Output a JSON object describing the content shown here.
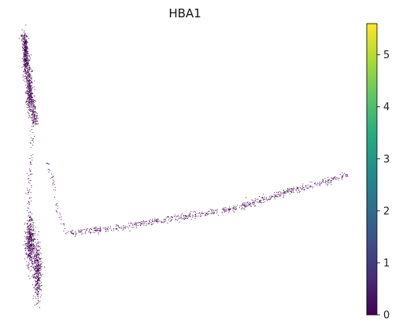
{
  "chart_data": {
    "type": "scatter",
    "title": "HBA1",
    "xlabel": "",
    "ylabel": "",
    "grid": false,
    "axes_visible": false,
    "point_color": "#440154",
    "point_color_value": 0,
    "colorbar": {
      "label": "",
      "range": [
        0,
        5.6
      ],
      "ticks": [
        0,
        1,
        2,
        3,
        4,
        5
      ],
      "tick_labels": [
        "0",
        "1",
        "2",
        "3",
        "4",
        "5"
      ],
      "colormap": "viridis",
      "colors": [
        "#440154",
        "#472c7a",
        "#3b518b",
        "#2c718e",
        "#21908d",
        "#27ad81",
        "#5cc863",
        "#aadc32",
        "#fde725"
      ]
    },
    "trajectory_branches": [
      {
        "name": "",
        "points": [
          [
            -0.99,
            1.0
          ],
          [
            -0.97,
            0.82
          ],
          [
            -0.95,
            0.6
          ],
          [
            -0.93,
            0.45
          ],
          [
            -0.92,
            0.32
          ]
        ]
      },
      {
        "name": "",
        "points": [
          [
            -0.93,
            0.32
          ],
          [
            -0.94,
            0.15
          ],
          [
            -0.95,
            -0.05
          ],
          [
            -0.96,
            -0.25
          ],
          [
            -0.95,
            -0.45
          ],
          [
            -0.92,
            -0.7
          ],
          [
            -0.9,
            -0.95
          ]
        ]
      },
      {
        "name": "",
        "points": [
          [
            -0.85,
            0.05
          ],
          [
            -0.82,
            -0.05
          ],
          [
            -0.8,
            -0.15
          ],
          [
            -0.79,
            -0.3
          ],
          [
            -0.75,
            -0.42
          ],
          [
            -0.72,
            -0.48
          ]
        ]
      },
      {
        "name": "",
        "points": [
          [
            -0.73,
            -0.48
          ],
          [
            -0.45,
            -0.45
          ],
          [
            -0.1,
            -0.38
          ],
          [
            0.3,
            -0.3
          ],
          [
            0.7,
            -0.15
          ],
          [
            1.0,
            -0.05
          ]
        ]
      }
    ]
  }
}
